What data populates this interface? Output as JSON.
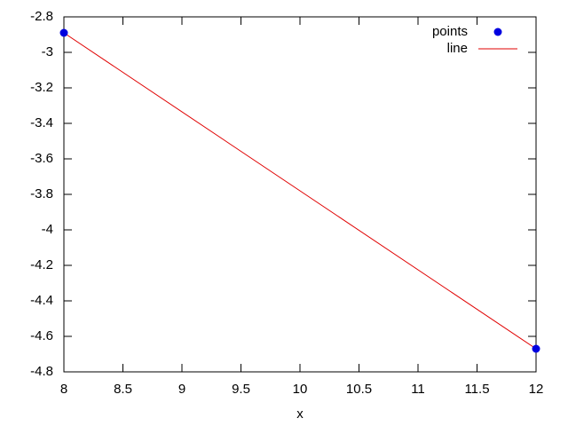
{
  "chart_data": {
    "type": "scatter",
    "x_label": "x",
    "xlim": [
      8,
      12
    ],
    "xticks": [
      8,
      8.5,
      9,
      9.5,
      10,
      10.5,
      11,
      11.5,
      12
    ],
    "ylim": [
      -4.8,
      -2.8
    ],
    "yticks": [
      -4.8,
      -4.6,
      -4.4,
      -4.2,
      -4,
      -3.8,
      -3.6,
      -3.4,
      -3.2,
      -3,
      -2.8
    ],
    "legend": "top-right",
    "series": [
      {
        "name": "points",
        "type": "scatter",
        "color": "#0000e0",
        "x": [
          8,
          12
        ],
        "values": [
          -2.89,
          -4.67
        ]
      },
      {
        "name": "line",
        "type": "line",
        "color": "#e00000",
        "x": [
          8,
          12
        ],
        "values": [
          -2.89,
          -4.67
        ]
      }
    ]
  }
}
